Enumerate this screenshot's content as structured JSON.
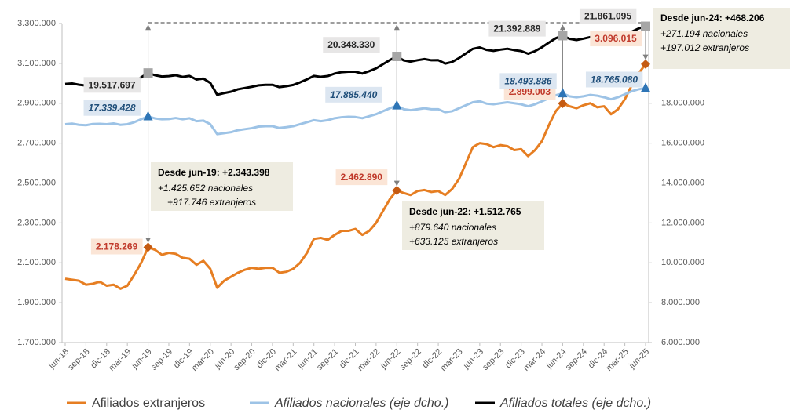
{
  "chart_data": {
    "type": "line",
    "categories": [
      "jun-18",
      null,
      null,
      "sep-18",
      null,
      null,
      "dic-18",
      null,
      null,
      "mar-19",
      null,
      null,
      "jun-19",
      null,
      null,
      "sep-19",
      null,
      null,
      "dic-19",
      null,
      null,
      "mar-20",
      null,
      null,
      "jun-20",
      null,
      null,
      "sep-20",
      null,
      null,
      "dic-20",
      null,
      null,
      "mar-21",
      null,
      null,
      "jun-21",
      null,
      null,
      "sep-21",
      null,
      null,
      "dic-21",
      null,
      null,
      "mar-22",
      null,
      null,
      "jun-22",
      null,
      null,
      "sep-22",
      null,
      null,
      "dic-22",
      null,
      null,
      "mar-23",
      null,
      null,
      "jun-23",
      null,
      null,
      "sep-23",
      null,
      null,
      "dic-23",
      null,
      null,
      "mar-24",
      null,
      null,
      "jun-24",
      null,
      null,
      "sep-24",
      null,
      null,
      "dic-24",
      null,
      null,
      "mar-25",
      null,
      null,
      "jun-25"
    ],
    "ylim": [
      1700000,
      3300000
    ],
    "yticks": [
      {
        "value": 1700000,
        "label": "1.700.000"
      },
      {
        "value": 1900000,
        "label": "1.900.000"
      },
      {
        "value": 2100000,
        "label": "2.100.000"
      },
      {
        "value": 2300000,
        "label": "2.300.000"
      },
      {
        "value": 2500000,
        "label": "2.500.000"
      },
      {
        "value": 2700000,
        "label": "2.700.000"
      },
      {
        "value": 2900000,
        "label": "2.900.000"
      },
      {
        "value": 3100000,
        "label": "3.100.000"
      },
      {
        "value": 3300000,
        "label": "3.300.000"
      }
    ],
    "y2lim": [
      6000000,
      22000000
    ],
    "y2ticks": [
      {
        "value": 6000000,
        "label": "6.000.000"
      },
      {
        "value": 8000000,
        "label": "8.000.000"
      },
      {
        "value": 10000000,
        "label": "10.000.000"
      },
      {
        "value": 12000000,
        "label": "12.000.000"
      },
      {
        "value": 14000000,
        "label": "14.000.000"
      },
      {
        "value": 16000000,
        "label": "16.000.000"
      },
      {
        "value": 18000000,
        "label": "18.000.000"
      }
    ],
    "legend": "bottom",
    "series": [
      {
        "name": "Afiliados extranjeros",
        "color": "#e67e22",
        "axis": "y",
        "values": [
          2020000,
          2015000,
          2010000,
          1990000,
          1995000,
          2005000,
          1985000,
          1990000,
          1970000,
          1985000,
          2040000,
          2100000,
          2178269,
          2165000,
          2140000,
          2150000,
          2145000,
          2125000,
          2120000,
          2090000,
          2110000,
          2070000,
          1975000,
          2010000,
          2030000,
          2050000,
          2065000,
          2075000,
          2070000,
          2075000,
          2075000,
          2050000,
          2055000,
          2070000,
          2100000,
          2150000,
          2220000,
          2225000,
          2215000,
          2240000,
          2260000,
          2260000,
          2270000,
          2240000,
          2260000,
          2300000,
          2360000,
          2420000,
          2462890,
          2450000,
          2440000,
          2460000,
          2465000,
          2455000,
          2460000,
          2440000,
          2470000,
          2520000,
          2600000,
          2680000,
          2700000,
          2695000,
          2680000,
          2690000,
          2685000,
          2665000,
          2670000,
          2635000,
          2665000,
          2710000,
          2790000,
          2860000,
          2899003,
          2885000,
          2875000,
          2890000,
          2900000,
          2880000,
          2885000,
          2845000,
          2870000,
          2920000,
          2990000,
          3050000,
          3096015
        ],
        "value_labels": [
          null,
          null,
          null,
          null,
          null,
          null,
          null,
          null,
          null,
          null,
          null,
          null,
          "2.178.269",
          null,
          null,
          null,
          null,
          null,
          null,
          null,
          null,
          null,
          null,
          null,
          null,
          null,
          null,
          null,
          null,
          null,
          null,
          null,
          null,
          null,
          null,
          null,
          null,
          null,
          null,
          null,
          null,
          null,
          null,
          null,
          null,
          null,
          null,
          null,
          "2.462.890",
          null,
          null,
          null,
          null,
          null,
          null,
          null,
          null,
          null,
          null,
          null,
          null,
          null,
          null,
          null,
          null,
          null,
          null,
          null,
          null,
          null,
          null,
          null,
          "2.899.003",
          null,
          null,
          null,
          null,
          null,
          null,
          null,
          null,
          null,
          null,
          null,
          "3.096.015"
        ]
      },
      {
        "name": "Afiliados nacionales (eje dcho.)",
        "color": "#9dc3e6",
        "axis": "y2",
        "values": [
          16950000,
          16980000,
          16920000,
          16900000,
          16960000,
          16970000,
          16950000,
          16990000,
          16920000,
          16950000,
          17050000,
          17200000,
          17339428,
          17240000,
          17200000,
          17210000,
          17260000,
          17200000,
          17250000,
          17100000,
          17130000,
          16950000,
          16450000,
          16500000,
          16550000,
          16650000,
          16700000,
          16750000,
          16830000,
          16850000,
          16850000,
          16760000,
          16800000,
          16850000,
          16950000,
          17050000,
          17150000,
          17100000,
          17150000,
          17250000,
          17300000,
          17320000,
          17310000,
          17250000,
          17350000,
          17450000,
          17600000,
          17750000,
          17885440,
          17700000,
          17650000,
          17700000,
          17750000,
          17700000,
          17700000,
          17550000,
          17600000,
          17750000,
          17900000,
          18050000,
          18100000,
          17980000,
          17950000,
          18000000,
          18050000,
          18000000,
          17950000,
          17850000,
          17950000,
          18100000,
          18250000,
          18400000,
          18493886,
          18350000,
          18300000,
          18350000,
          18420000,
          18380000,
          18300000,
          18200000,
          18300000,
          18450000,
          18600000,
          18700000,
          18765080
        ],
        "value_labels": [
          null,
          null,
          null,
          null,
          null,
          null,
          null,
          null,
          null,
          null,
          null,
          null,
          "17.339.428",
          null,
          null,
          null,
          null,
          null,
          null,
          null,
          null,
          null,
          null,
          null,
          null,
          null,
          null,
          null,
          null,
          null,
          null,
          null,
          null,
          null,
          null,
          null,
          null,
          null,
          null,
          null,
          null,
          null,
          null,
          null,
          null,
          null,
          null,
          null,
          "17.885.440",
          null,
          null,
          null,
          null,
          null,
          null,
          null,
          null,
          null,
          null,
          null,
          null,
          null,
          null,
          null,
          null,
          null,
          null,
          null,
          null,
          null,
          null,
          null,
          "18.493.886",
          null,
          null,
          null,
          null,
          null,
          null,
          null,
          null,
          null,
          null,
          null,
          "18.765.080"
        ]
      },
      {
        "name": "Afiliados totales (eje dcho.)",
        "color": "#000000",
        "axis": "y2",
        "values": [
          18970000,
          18995000,
          18930000,
          18890000,
          18955000,
          18975000,
          18935000,
          18980000,
          18890000,
          18935000,
          19090000,
          19300000,
          19517697,
          19405000,
          19340000,
          19360000,
          19405000,
          19325000,
          19370000,
          19190000,
          19240000,
          19020000,
          18425000,
          18510000,
          18580000,
          18700000,
          18765000,
          18825000,
          18900000,
          18925000,
          18925000,
          18810000,
          18855000,
          18920000,
          19050000,
          19200000,
          19370000,
          19325000,
          19365000,
          19490000,
          19560000,
          19580000,
          19580000,
          19490000,
          19610000,
          19750000,
          19960000,
          20170000,
          20348330,
          20150000,
          20090000,
          20160000,
          20215000,
          20155000,
          20160000,
          19990000,
          20070000,
          20270000,
          20500000,
          20730000,
          20800000,
          20675000,
          20630000,
          20690000,
          20735000,
          20665000,
          20620000,
          20485000,
          20615000,
          20810000,
          21040000,
          21260000,
          21392889,
          21235000,
          21175000,
          21240000,
          21320000,
          21260000,
          21185000,
          21045000,
          21170000,
          21370000,
          21590000,
          21750000,
          21861095
        ],
        "value_labels": [
          null,
          null,
          null,
          null,
          null,
          null,
          null,
          null,
          null,
          null,
          null,
          null,
          "19.517.697",
          null,
          null,
          null,
          null,
          null,
          null,
          null,
          null,
          null,
          null,
          null,
          null,
          null,
          null,
          null,
          null,
          null,
          null,
          null,
          null,
          null,
          null,
          null,
          null,
          null,
          null,
          null,
          null,
          null,
          null,
          null,
          null,
          null,
          null,
          null,
          "20.348.330",
          null,
          null,
          null,
          null,
          null,
          null,
          null,
          null,
          null,
          null,
          null,
          null,
          null,
          null,
          null,
          null,
          null,
          null,
          null,
          null,
          null,
          null,
          null,
          "21.392.889",
          null,
          null,
          null,
          null,
          null,
          null,
          null,
          null,
          null,
          null,
          null,
          "21.861.095"
        ]
      }
    ],
    "annotations": [
      {
        "title": "Desde jun-19: +2.343.398",
        "lines": [
          "+1.425.652 nacionales",
          "+917.746 extranjeros"
        ]
      },
      {
        "title": "Desde jun-22: +1.512.765",
        "lines": [
          "+879.640 nacionales",
          "+633.125 extranjeros"
        ]
      },
      {
        "title": "Desde jun-24: +468.206",
        "lines": [
          "+271.194 nacionales",
          "+197.012 extranjeros"
        ]
      }
    ]
  }
}
